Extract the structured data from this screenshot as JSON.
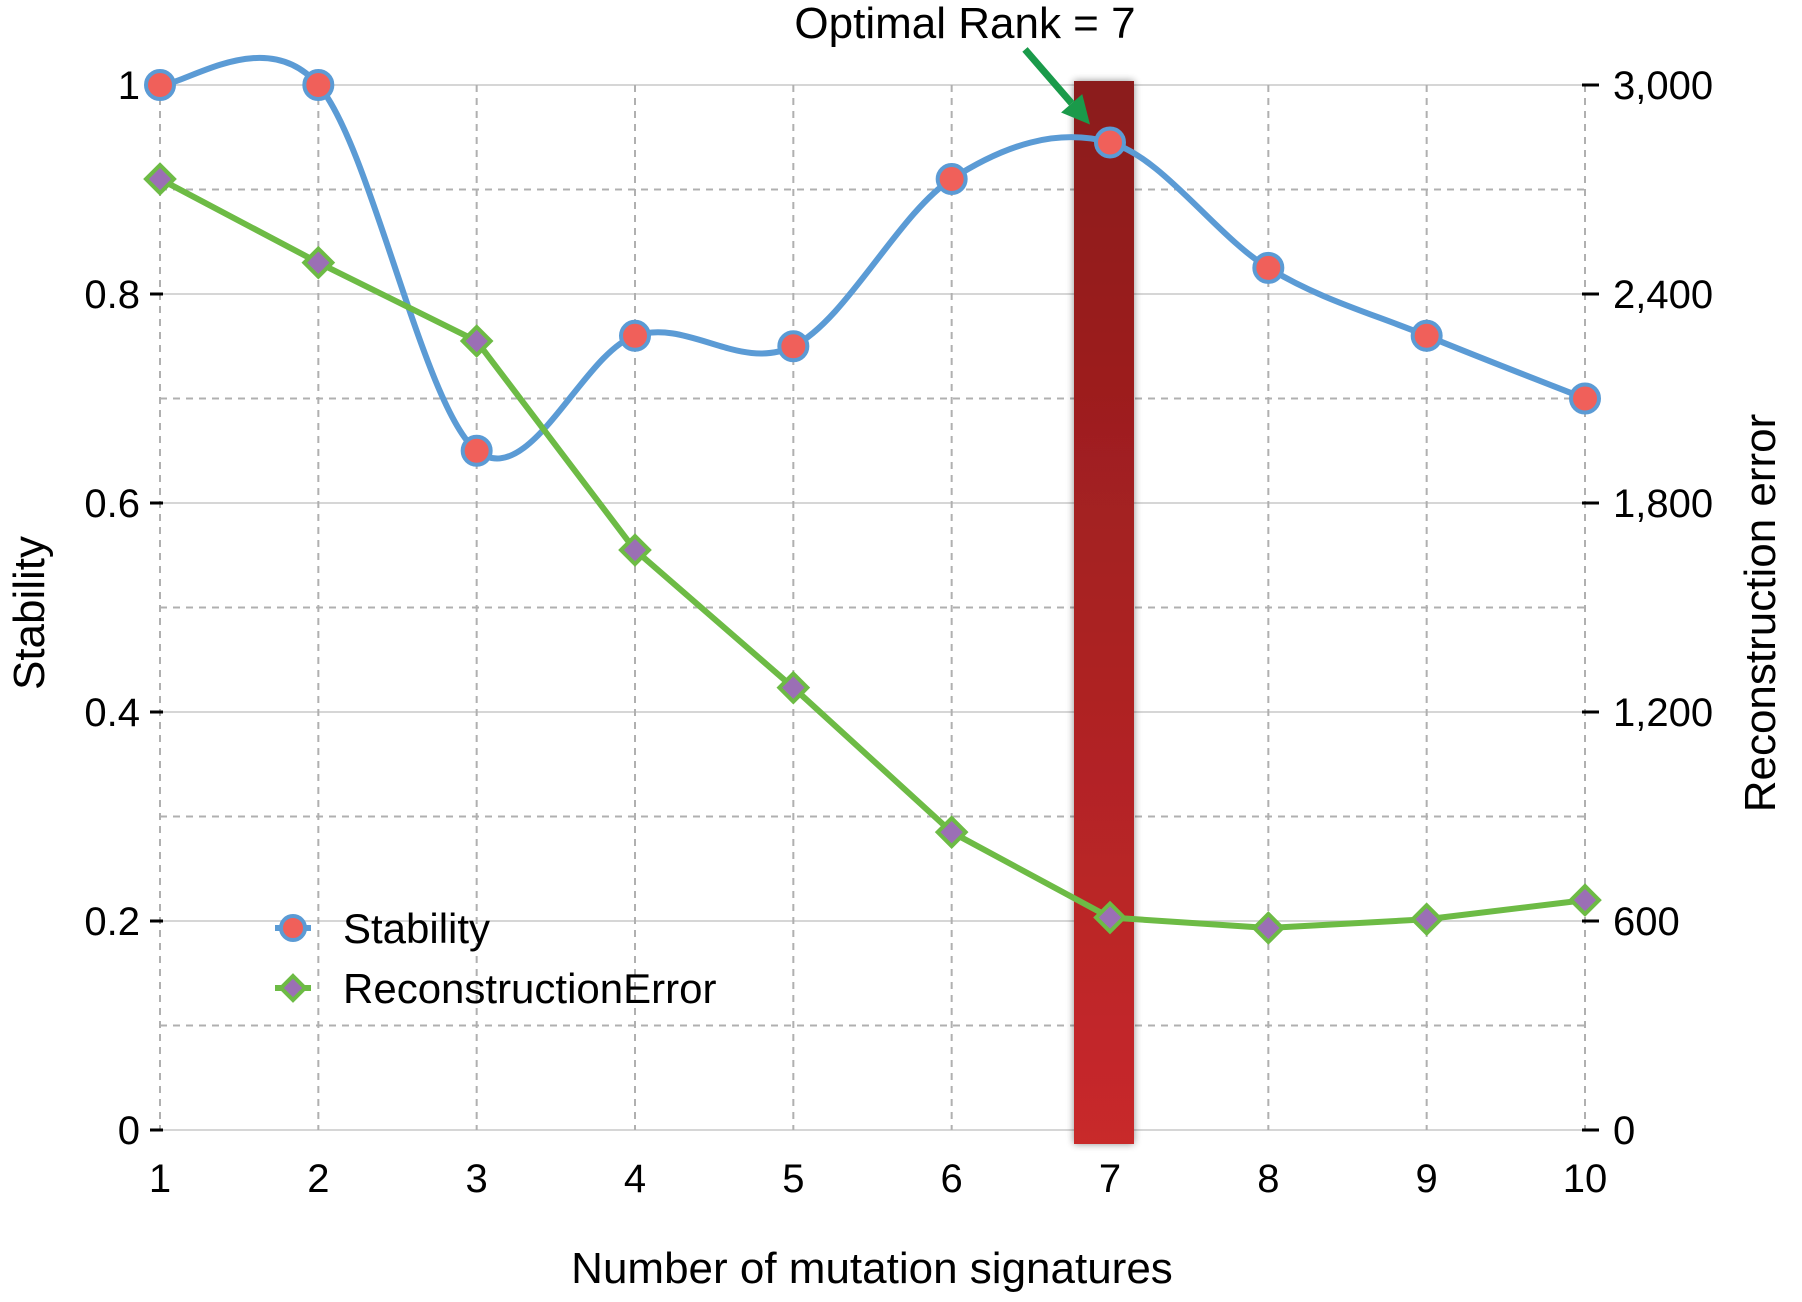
{
  "chart_data": {
    "type": "line",
    "xlabel": "Number of mutation signatures",
    "ylabel_left": "Stability",
    "ylabel_right": "Reconstruction error",
    "x": [
      1,
      2,
      3,
      4,
      5,
      6,
      7,
      8,
      9,
      10
    ],
    "xlim": [
      1,
      10
    ],
    "ylim_left": [
      0,
      1
    ],
    "ylim_right": [
      0,
      3000
    ],
    "yticks_left": [
      "0",
      "0.2",
      "0.4",
      "0.6",
      "0.8",
      "1"
    ],
    "yticks_right": [
      "0",
      "600",
      "1,200",
      "1,800",
      "2,400",
      "3,000"
    ],
    "grid": true,
    "legend_position": "lower-left",
    "highlight": {
      "x": 7,
      "color_top": "#8b1a1a",
      "color_bottom": "#c8292b"
    },
    "annotation": {
      "text": "Optimal Rank = 7",
      "x": 7,
      "arrow_color": "#1a9a4a"
    },
    "series": [
      {
        "name": "Stability",
        "axis": "left",
        "line_color": "#5b9bd5",
        "marker": "circle",
        "marker_fill": "#f0605a",
        "values": [
          1.0,
          1.0,
          0.65,
          0.76,
          0.75,
          0.91,
          0.945,
          0.825,
          0.76,
          0.7
        ]
      },
      {
        "name": "ReconstructionError",
        "axis": "right",
        "line_color": "#6dbb45",
        "marker": "diamond",
        "marker_fill": "#9b6fb5",
        "values": [
          2730,
          2490,
          2265,
          1665,
          1270,
          855,
          610,
          580,
          605,
          660
        ]
      }
    ]
  }
}
